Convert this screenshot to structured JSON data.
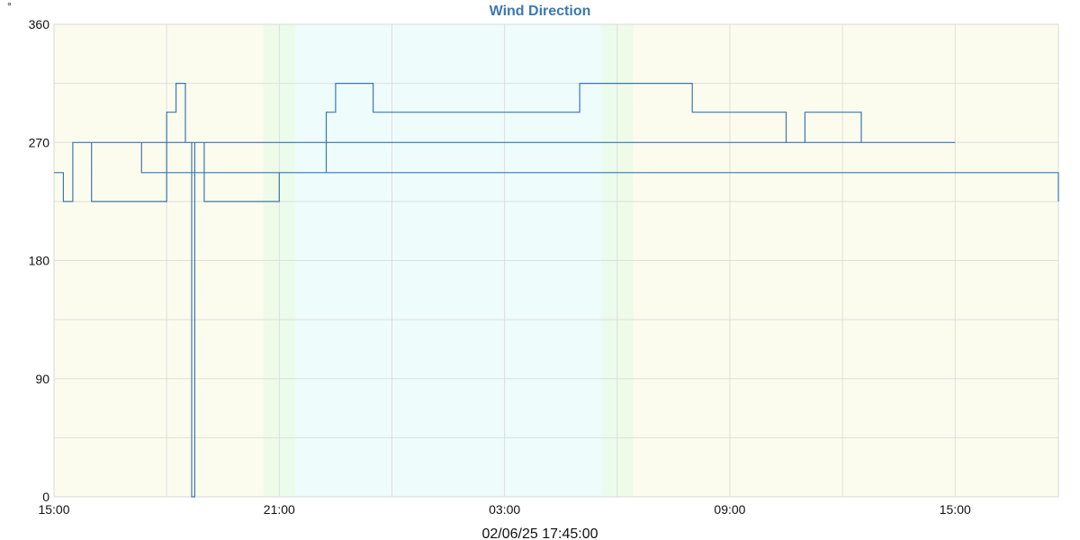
{
  "chart_data": {
    "type": "line",
    "title": "Wind Direction",
    "y_unit": "°",
    "footer": "02/06/25 17:45:00",
    "ylim": [
      0,
      360
    ],
    "y_ticks": [
      0,
      90,
      180,
      270,
      360
    ],
    "x_tick_labels": [
      "15:00",
      "21:00",
      "03:00",
      "09:00",
      "15:00"
    ],
    "x_start": "15:00",
    "x_end": "17:45",
    "grid": true,
    "series_color": "#3a78b0",
    "background_bands": [
      {
        "from": "15:00",
        "to": "21:00",
        "color": "#fcfcee"
      },
      {
        "from": "21:00",
        "to": "06:00",
        "color": "#eefcfc"
      },
      {
        "from": "06:00",
        "to": "17:45",
        "color": "#fcfcee"
      }
    ],
    "series": [
      {
        "x": [
          "15:00",
          "15:15",
          "15:30",
          "16:00",
          "16:30",
          "17:00",
          "17:30",
          "18:00",
          "18:15",
          "18:30",
          "18:40",
          "18:45",
          "19:00",
          "19:15",
          "19:30",
          "20:00",
          "20:30",
          "21:00",
          "21:30",
          "22:00",
          "22:15",
          "22:30",
          "23:00",
          "23:30",
          "00:00",
          "00:30",
          "01:00",
          "01:30",
          "02:00",
          "02:30",
          "03:00",
          "03:30",
          "04:00",
          "04:30",
          "05:00",
          "05:30",
          "06:00",
          "06:30",
          "07:00",
          "07:30",
          "08:00",
          "08:30",
          "09:00",
          "09:30",
          "10:00",
          "10:30",
          "11:00",
          "11:30",
          "12:00",
          "12:30",
          "13:00",
          "13:30",
          "14:00",
          "14:30",
          "15:00",
          "15:30",
          "16:00",
          "16:30",
          "17:00",
          "17:20",
          "17:45"
        ],
        "y": [
          247,
          225,
          270,
          225,
          225,
          225,
          225,
          293,
          315,
          270,
          0,
          270,
          225,
          225,
          225,
          225,
          225,
          247,
          247,
          247,
          293,
          315,
          315,
          293,
          293,
          293,
          293,
          293,
          293,
          293,
          293,
          293,
          293,
          293,
          315,
          315,
          315,
          315,
          315,
          315,
          293,
          293,
          293,
          293,
          293,
          270,
          293,
          293,
          293,
          270,
          270,
          270,
          270,
          270,
          270,
          270,
          270,
          270,
          270,
          247,
          225
        ]
      }
    ]
  }
}
